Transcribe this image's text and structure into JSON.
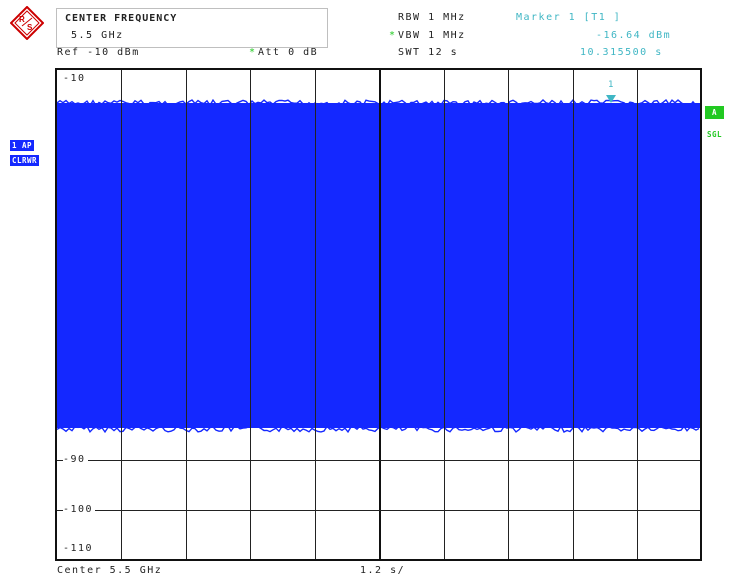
{
  "header": {
    "center_title": "CENTER FREQUENCY",
    "center_value": "5.5 GHz",
    "ref": "Ref -10 dBm",
    "att_star": "*",
    "att": "Att  0 dB",
    "rbw": "RBW 1 MHz",
    "vbw_star": "*",
    "vbw": "VBW 1 MHz",
    "swt": "SWT 12 s",
    "marker_title": "Marker 1 [T1 ]",
    "marker_level": "-16.64 dBm",
    "marker_time": "10.315500 s"
  },
  "plot": {
    "y_labels": [
      "-10",
      "-90",
      "-100",
      "-110"
    ],
    "marker_number": "1"
  },
  "side": {
    "trace_mode_1": "1 AP",
    "trace_mode_2": "CLRWR",
    "right_badge": "A",
    "right_mode": "SGL"
  },
  "footer": {
    "center": "Center 5.5 GHz",
    "span": "1.2 s/"
  },
  "colors": {
    "trace": "#1428ff",
    "marker": "#3fb6c4",
    "status_green": "#22c922"
  }
}
